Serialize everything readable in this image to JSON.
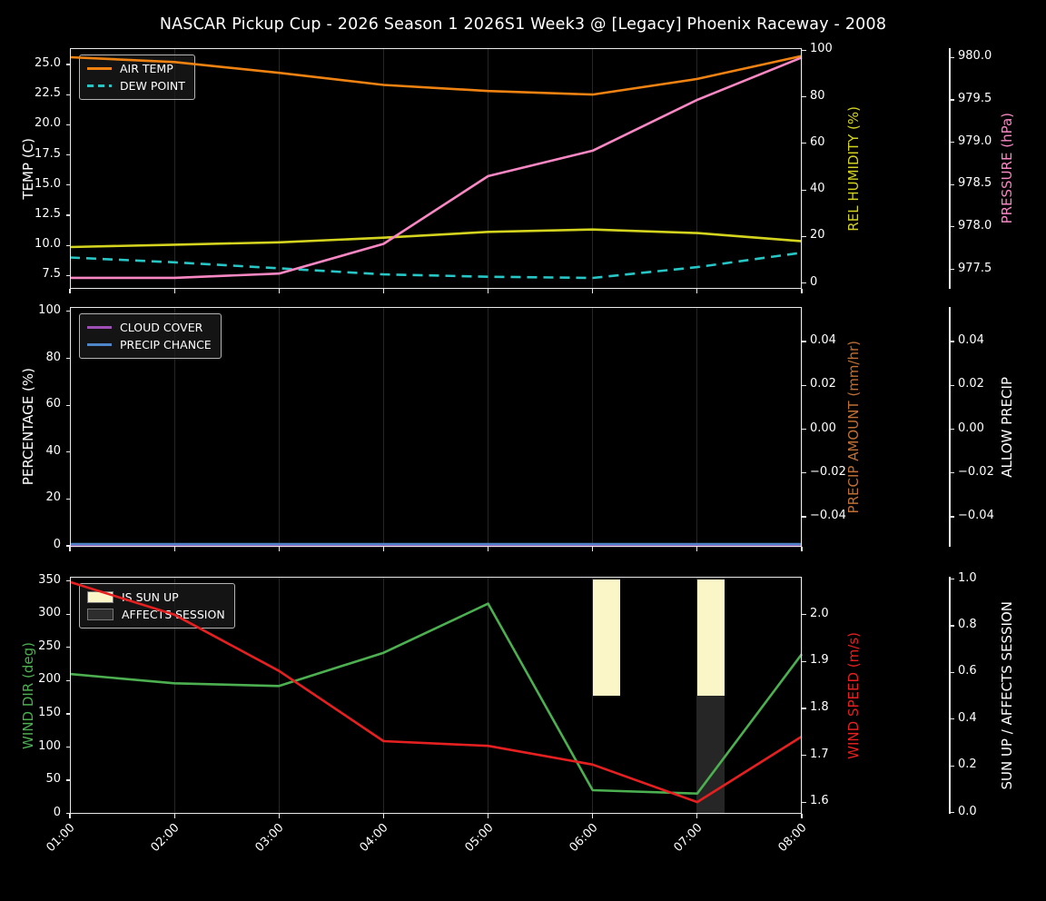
{
  "title": "NASCAR Pickup Cup - 2026 Season 1 2026S1 Week3 @ [Legacy] Phoenix Raceway - 2008",
  "colors": {
    "background": "#000000",
    "grid": "#262626",
    "spine": "#e9e9e9",
    "tick_text": "#ffffff",
    "air_temp": "#ef8210",
    "dew_point": "#26c6c6",
    "rel_humidity": "#d4d41f",
    "pressure": "#f887c3",
    "cloud_cover": "#9d4fb5",
    "precip_chance": "#4e86c9",
    "precip_amount": "#bf6f35",
    "wind_dir": "#4caf50",
    "wind_speed": "#e62020",
    "sun_up_bar": "#fbf6c8",
    "affects_session_bar": "#262626"
  },
  "chart_data": {
    "type": "line",
    "x_categories": [
      "01:00",
      "02:00",
      "03:00",
      "04:00",
      "05:00",
      "06:00",
      "07:00",
      "08:00"
    ],
    "x_axis": {
      "range": [
        1,
        8
      ],
      "ticks": [
        {
          "v": 1,
          "t": "01:00"
        },
        {
          "v": 2,
          "t": "02:00"
        },
        {
          "v": 3,
          "t": "03:00"
        },
        {
          "v": 4,
          "t": "04:00"
        },
        {
          "v": 5,
          "t": "05:00"
        },
        {
          "v": 6,
          "t": "06:00"
        },
        {
          "v": 7,
          "t": "07:00"
        },
        {
          "v": 8,
          "t": "08:00"
        }
      ]
    },
    "panels": [
      {
        "id": "temperature",
        "legend": [
          {
            "label": "AIR TEMP",
            "color": "#ef8210",
            "kind": "line"
          },
          {
            "label": "DEW POINT",
            "color": "#26c6c6",
            "kind": "dashed-line"
          }
        ],
        "left_axis": {
          "title": "TEMP (C)",
          "color": "#ffffff",
          "range": [
            6.4,
            26.35
          ],
          "ticks": [
            {
              "v": 7.5,
              "t": "7.5"
            },
            {
              "v": 10,
              "t": "10.0"
            },
            {
              "v": 12.5,
              "t": "12.5"
            },
            {
              "v": 15,
              "t": "15.0"
            },
            {
              "v": 17.5,
              "t": "17.5"
            },
            {
              "v": 20,
              "t": "20.0"
            },
            {
              "v": 22.5,
              "t": "22.5"
            },
            {
              "v": 25,
              "t": "25.0"
            }
          ]
        },
        "right_axes": [
          {
            "title": "REL HUMIDITY (%)",
            "color": "#d4d41f",
            "range": [
              -2.45,
              100.9
            ],
            "detached": false,
            "ticks": [
              {
                "v": 0,
                "t": "0"
              },
              {
                "v": 20,
                "t": "20"
              },
              {
                "v": 40,
                "t": "40"
              },
              {
                "v": 60,
                "t": "60"
              },
              {
                "v": 80,
                "t": "80"
              },
              {
                "v": 100,
                "t": "100"
              }
            ]
          },
          {
            "title": "PRESSURE (hPa)",
            "color": "#f887c3",
            "range": [
              977.27,
              980.11
            ],
            "detached": true,
            "ticks": [
              {
                "v": 977.5,
                "t": "977.5"
              },
              {
                "v": 978,
                "t": "978.0"
              },
              {
                "v": 978.5,
                "t": "978.5"
              },
              {
                "v": 979,
                "t": "979.0"
              },
              {
                "v": 979.5,
                "t": "979.5"
              },
              {
                "v": 980,
                "t": "980.0"
              }
            ]
          }
        ],
        "series": [
          {
            "name": "AIR TEMP",
            "axis": "left",
            "color": "#ef8210",
            "dashed": false,
            "values": [
              25.6,
              25.2,
              24.3,
              23.3,
              22.8,
              22.5,
              23.8,
              25.7
            ]
          },
          {
            "name": "DEW POINT",
            "axis": "left",
            "color": "#26c6c6",
            "dashed": true,
            "values": [
              9.0,
              8.6,
              8.1,
              7.6,
              7.4,
              7.3,
              8.2,
              9.4
            ]
          },
          {
            "name": "REL HUMIDITY",
            "axis": "right0",
            "color": "#d4d41f",
            "dashed": false,
            "values": [
              15.5,
              16.5,
              17.5,
              19.5,
              22.0,
              23.0,
              21.5,
              18.0
            ]
          },
          {
            "name": "PRESSURE",
            "axis": "right1",
            "color": "#f887c3",
            "dashed": false,
            "values": [
              977.4,
              977.4,
              977.45,
              977.8,
              978.6,
              978.9,
              979.5,
              980.0
            ]
          }
        ],
        "bars": [],
        "show_x_labels": false
      },
      {
        "id": "precipitation",
        "legend": [
          {
            "label": "CLOUD COVER",
            "color": "#9d4fb5",
            "kind": "line"
          },
          {
            "label": "PRECIP CHANCE",
            "color": "#4e86c9",
            "kind": "line"
          }
        ],
        "left_axis": {
          "title": "PERCENTAGE (%)",
          "color": "#ffffff",
          "range": [
            -0.4,
            101.9
          ],
          "ticks": [
            {
              "v": 0,
              "t": "0"
            },
            {
              "v": 20,
              "t": "20"
            },
            {
              "v": 40,
              "t": "40"
            },
            {
              "v": 60,
              "t": "60"
            },
            {
              "v": 80,
              "t": "80"
            },
            {
              "v": 100,
              "t": "100"
            }
          ]
        },
        "right_axes": [
          {
            "title": "PRECIP AMOUNT (mm/hr)",
            "color": "#bf6f35",
            "range": [
              -0.0537,
              0.0558
            ],
            "detached": false,
            "ticks": [
              {
                "v": -0.04,
                "t": "−0.04"
              },
              {
                "v": -0.02,
                "t": "−0.02"
              },
              {
                "v": 0,
                "t": "0.00"
              },
              {
                "v": 0.02,
                "t": "0.02"
              },
              {
                "v": 0.04,
                "t": "0.04"
              }
            ]
          },
          {
            "title": "ALLOW PRECIP",
            "color": "#ffffff",
            "range": [
              -0.0537,
              0.0558
            ],
            "detached": true,
            "ticks": [
              {
                "v": -0.04,
                "t": "−0.04"
              },
              {
                "v": -0.02,
                "t": "−0.02"
              },
              {
                "v": 0,
                "t": "0.00"
              },
              {
                "v": 0.02,
                "t": "0.02"
              },
              {
                "v": 0.04,
                "t": "0.04"
              }
            ]
          }
        ],
        "series": [
          {
            "name": "CLOUD COVER",
            "axis": "left",
            "color": "#9d4fb5",
            "dashed": false,
            "values": [
              0,
              0,
              0,
              0,
              0,
              0,
              0,
              0
            ]
          },
          {
            "name": "PRECIP CHANCE",
            "axis": "left",
            "color": "#4e86c9",
            "dashed": false,
            "dy": -2,
            "values": [
              0,
              0,
              0,
              0,
              0,
              0,
              0,
              0
            ]
          }
        ],
        "bars": [],
        "show_x_labels": false
      },
      {
        "id": "wind-sun",
        "legend": [
          {
            "label": "IS SUN UP",
            "color": "#fbf6c8",
            "kind": "patch"
          },
          {
            "label": "AFFECTS SESSION",
            "color": "#2d2d2d",
            "kind": "patch"
          }
        ],
        "left_axis": {
          "title": "WIND DIR (deg)",
          "color": "#4caf50",
          "range": [
            -0.5,
            356.5
          ],
          "ticks": [
            {
              "v": 0,
              "t": "0"
            },
            {
              "v": 50,
              "t": "50"
            },
            {
              "v": 100,
              "t": "100"
            },
            {
              "v": 150,
              "t": "150"
            },
            {
              "v": 200,
              "t": "200"
            },
            {
              "v": 250,
              "t": "250"
            },
            {
              "v": 300,
              "t": "300"
            },
            {
              "v": 350,
              "t": "350"
            }
          ]
        },
        "right_axes": [
          {
            "title": "WIND SPEED (m/s)",
            "color": "#e62020",
            "range": [
              1.575,
              2.081
            ],
            "detached": false,
            "ticks": [
              {
                "v": 1.6,
                "t": "1.6"
              },
              {
                "v": 1.7,
                "t": "1.7"
              },
              {
                "v": 1.8,
                "t": "1.8"
              },
              {
                "v": 1.9,
                "t": "1.9"
              },
              {
                "v": 2.0,
                "t": "2.0"
              }
            ]
          },
          {
            "title": "SUN UP / AFFECTS SESSION",
            "color": "#ffffff",
            "range": [
              -0.005,
              1.01
            ],
            "detached": true,
            "ticks": [
              {
                "v": 0,
                "t": "0.0"
              },
              {
                "v": 0.2,
                "t": "0.2"
              },
              {
                "v": 0.4,
                "t": "0.4"
              },
              {
                "v": 0.6,
                "t": "0.6"
              },
              {
                "v": 0.8,
                "t": "0.8"
              },
              {
                "v": 1.0,
                "t": "1.0"
              }
            ]
          }
        ],
        "series": [
          {
            "name": "WIND DIR",
            "axis": "left",
            "color": "#4caf50",
            "dashed": false,
            "values": [
              210,
              196,
              192,
              242,
              316,
              35,
              30,
              240
            ]
          },
          {
            "name": "WIND SPEED",
            "axis": "right0",
            "color": "#e62020",
            "dashed": false,
            "values": [
              2.07,
              2.0,
              1.88,
              1.73,
              1.72,
              1.68,
              1.6,
              1.74
            ]
          }
        ],
        "bars": [
          {
            "name": "IS SUN UP",
            "x": 6,
            "width_h": 0.26,
            "axis": "right1",
            "from": 0.5,
            "to": 1.0,
            "color": "#fbf6c8"
          },
          {
            "name": "IS SUN UP",
            "x": 7,
            "width_h": 0.26,
            "axis": "right1",
            "from": 0.5,
            "to": 1.0,
            "color": "#fbf6c8"
          },
          {
            "name": "AFFECTS SESSION",
            "x": 7,
            "width_h": 0.26,
            "axis": "right1",
            "from": 0.0,
            "to": 0.5,
            "color": "#262626"
          }
        ],
        "show_x_labels": true
      }
    ]
  }
}
